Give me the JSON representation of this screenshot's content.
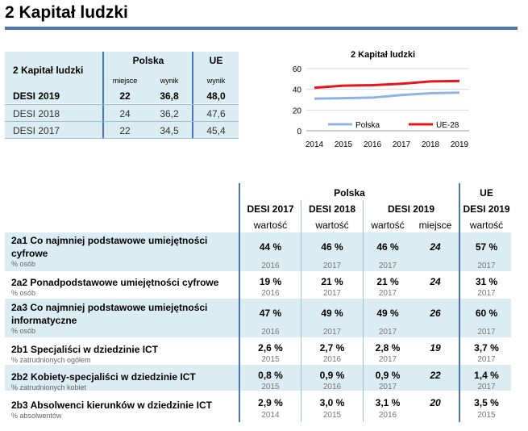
{
  "title": "2 Kapitał ludzki",
  "summary": {
    "header": {
      "label": "2 Kapitał ludzki",
      "polska": "Polska",
      "ue": "UE",
      "miejsce": "miejsce",
      "wynik": "wynik",
      "wynik_ue": "wynik"
    },
    "rows": [
      {
        "label": "DESI 2019",
        "miejsce": "22",
        "wynik": "36,8",
        "ue": "48,0"
      },
      {
        "label": "DESI 2018",
        "miejsce": "24",
        "wynik": "36,2",
        "ue": "47,6"
      },
      {
        "label": "DESI 2017",
        "miejsce": "22",
        "wynik": "34,5",
        "ue": "45,4"
      }
    ]
  },
  "chart_data": {
    "type": "line",
    "title": "2 Kapitał ludzki",
    "x": [
      "2014",
      "2015",
      "2016",
      "2017",
      "2018",
      "2019"
    ],
    "yticks": [
      "0",
      "20",
      "40",
      "60"
    ],
    "ylim": [
      0,
      60
    ],
    "series": [
      {
        "name": "Polska",
        "color": "#8fb4e3",
        "values": [
          31,
          31.5,
          32,
          34.5,
          36.2,
          36.8
        ]
      },
      {
        "name": "UE-28",
        "color": "#e8141c",
        "values": [
          41.5,
          43.5,
          44,
          45.4,
          47.6,
          48.0
        ]
      }
    ]
  },
  "detail": {
    "header": {
      "polska": "Polska",
      "ue": "UE",
      "desi2017": "DESI 2017",
      "desi2018": "DESI 2018",
      "desi2019": "DESI 2019",
      "desi2019_ue": "DESI 2019",
      "wartosc": "wartość",
      "miejsce": "miejsce"
    },
    "rows": [
      {
        "name": "2a1 Co najmniej podstawowe umiejętności cyfrowe",
        "unit": "% osób",
        "v2017": "44 %",
        "y2017": "2016",
        "v2018": "46 %",
        "y2018": "2017",
        "v2019": "46 %",
        "y2019": "2017",
        "rank": "24",
        "ue": "57 %",
        "yue": "2017"
      },
      {
        "name": "2a2 Ponadpodstawowe umiejętności cyfrowe",
        "unit": "% osób",
        "v2017": "19 %",
        "y2017": "2016",
        "v2018": "21 %",
        "y2018": "2017",
        "v2019": "21 %",
        "y2019": "2017",
        "rank": "24",
        "ue": "31 %",
        "yue": "2017"
      },
      {
        "name": "2a3 Co najmniej podstawowe umiejętności informatyczne",
        "unit": "% osób",
        "v2017": "47 %",
        "y2017": "2016",
        "v2018": "49 %",
        "y2018": "2017",
        "v2019": "49 %",
        "y2019": "2017",
        "rank": "26",
        "ue": "60 %",
        "yue": "2017"
      },
      {
        "name": "2b1 Specjaliści w dziedzinie ICT",
        "unit": "% zatrudnionych ogółem",
        "v2017": "2,6 %",
        "y2017": "2015",
        "v2018": "2,7 %",
        "y2018": "2016",
        "v2019": "2,8 %",
        "y2019": "2017",
        "rank": "19",
        "ue": "3,7 %",
        "yue": "2017"
      },
      {
        "name": "2b2 Kobiety-specjaliści w dziedzinie ICT",
        "unit": "% zatrudnionych kobiet",
        "v2017": "0,8 %",
        "y2017": "2015",
        "v2018": "0,9 %",
        "y2018": "2016",
        "v2019": "0,9 %",
        "y2019": "2017",
        "rank": "22",
        "ue": "1,4 %",
        "yue": "2017"
      },
      {
        "name": "2b3 Absolwenci kierunków w dziedzinie ICT",
        "unit": "% absolwentów",
        "v2017": "2,9 %",
        "y2017": "2014",
        "v2018": "3,0 %",
        "y2018": "2015",
        "v2019": "3,1 %",
        "y2019": "2016",
        "rank": "20",
        "ue": "3,5 %",
        "yue": "2015"
      }
    ]
  }
}
